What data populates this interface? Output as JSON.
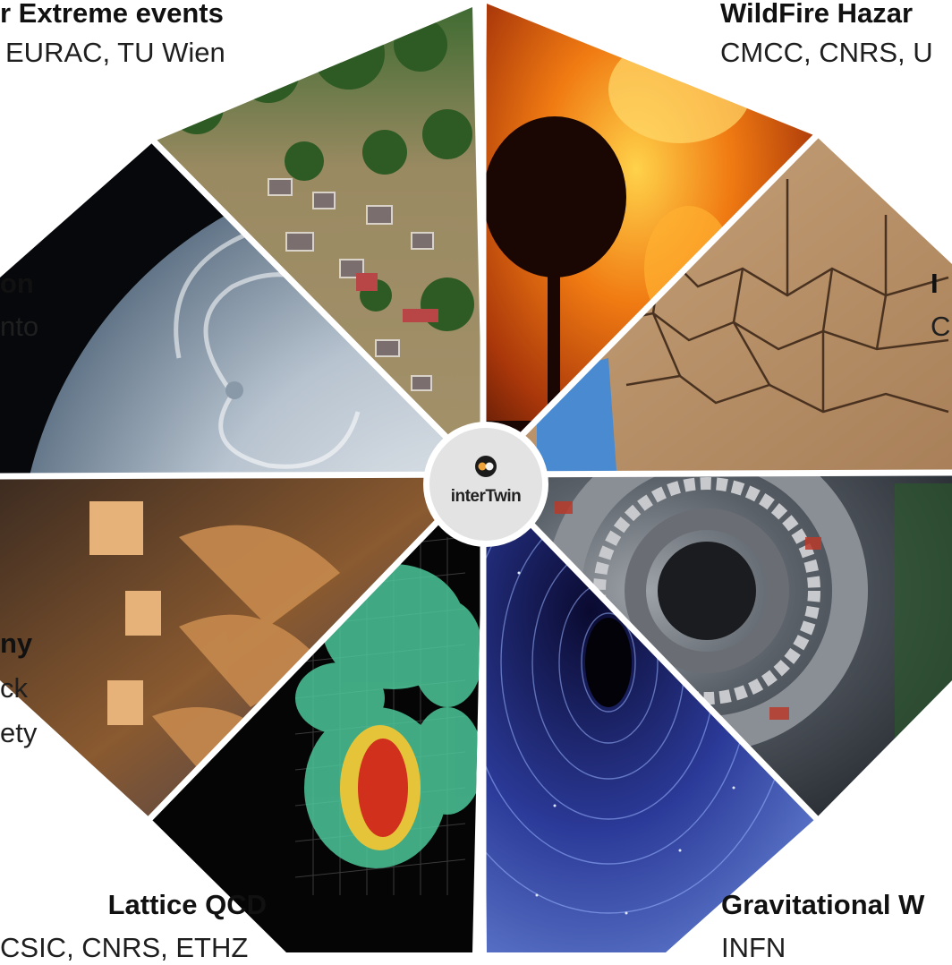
{
  "center": {
    "logo_text": "interTwin"
  },
  "labels": {
    "extreme_title": "r Extreme events",
    "extreme_partners": "EURAC, TU Wien",
    "wildfire_title": "WildFire Hazar",
    "wildfire_partners": "CMCC, CNRS, U",
    "climate_title": "on",
    "climate_partners": "nto",
    "drought_title": "I",
    "drought_partners": "C",
    "radio_title": "ny",
    "radio_partners_1": "ck",
    "radio_partners_2": "ety",
    "lattice_title": "Lattice QCD",
    "lattice_partners": "CSIC, CNRS, ETHZ",
    "grav_title": "Gravitational W",
    "grav_partners": "INFN"
  },
  "segments": [
    "flood-photo",
    "wildfire-photo",
    "drought-cracked-earth-photo",
    "particle-detector-photo",
    "spacetime-blackhole-photo",
    "lattice-qcd-volume-render",
    "radio-telescope-photo",
    "hurricane-satellite-photo"
  ]
}
